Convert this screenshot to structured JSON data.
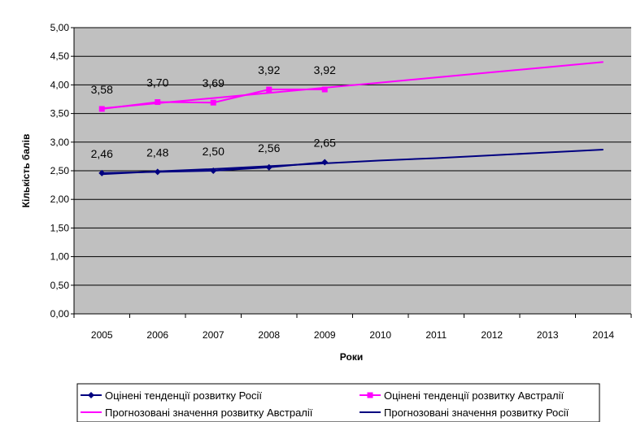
{
  "chart_data": {
    "type": "line",
    "title": "",
    "xlabel": "Роки",
    "ylabel": "Кількість балів",
    "categories": [
      "2005",
      "2006",
      "2007",
      "2008",
      "2009",
      "2010",
      "2011",
      "2012",
      "2013",
      "2014"
    ],
    "ylim": [
      0,
      5
    ],
    "yticks": [
      "0,00",
      "0,50",
      "1,00",
      "1,50",
      "2,00",
      "2,50",
      "3,00",
      "3,50",
      "4,00",
      "4,50",
      "5,00"
    ],
    "grid": true,
    "legend_position": "bottom",
    "series": [
      {
        "name": "Оцінені тенденції розвитку Росії",
        "color": "#000080",
        "marker": "diamond",
        "values": [
          2.46,
          2.48,
          2.5,
          2.56,
          2.65,
          null,
          null,
          null,
          null,
          null
        ],
        "labels": [
          "2,46",
          "2,48",
          "2,50",
          "2,56",
          "2,65"
        ]
      },
      {
        "name": "Оцінені тенденції розвитку Австралії",
        "color": "#ff00ff",
        "marker": "square",
        "values": [
          3.58,
          3.7,
          3.69,
          3.92,
          3.92,
          null,
          null,
          null,
          null,
          null
        ],
        "labels": [
          "3,58",
          "3,70",
          "3,69",
          "3,92",
          "3,92"
        ]
      },
      {
        "name": "Прогнозовані значення розвитку Австралії",
        "color": "#ff00ff",
        "marker": "none",
        "values": [
          3.59,
          3.68,
          3.77,
          3.86,
          3.95,
          4.04,
          4.13,
          4.22,
          4.31,
          4.4
        ]
      },
      {
        "name": "Прогнозовані значення розвитку Росії",
        "color": "#000080",
        "marker": "none",
        "values": [
          2.44,
          2.49,
          2.53,
          2.58,
          2.63,
          2.68,
          2.72,
          2.77,
          2.82,
          2.87
        ]
      }
    ],
    "legend_order": [
      0,
      1,
      2,
      3
    ]
  }
}
